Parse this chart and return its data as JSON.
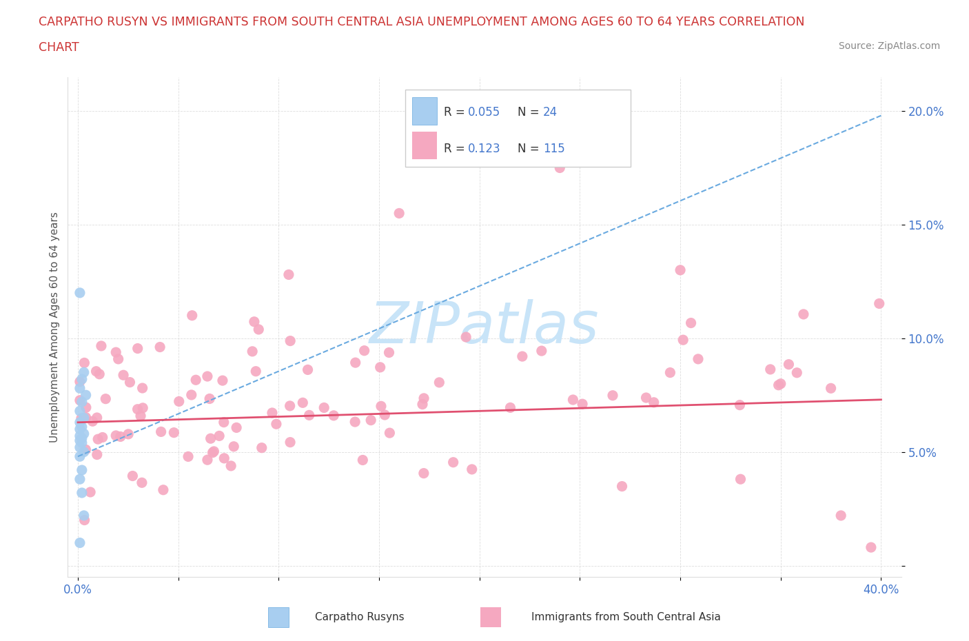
{
  "title_line1": "CARPATHO RUSYN VS IMMIGRANTS FROM SOUTH CENTRAL ASIA UNEMPLOYMENT AMONG AGES 60 TO 64 YEARS CORRELATION",
  "title_line2": "CHART",
  "source_text": "Source: ZipAtlas.com",
  "ylabel": "Unemployment Among Ages 60 to 64 years",
  "xlim": [
    -0.005,
    0.41
  ],
  "ylim": [
    -0.005,
    0.215
  ],
  "xtick_vals": [
    0.0,
    0.05,
    0.1,
    0.15,
    0.2,
    0.25,
    0.3,
    0.35,
    0.4
  ],
  "xtick_labels": [
    "0.0%",
    "",
    "",
    "",
    "",
    "",
    "",
    "",
    "40.0%"
  ],
  "ytick_vals": [
    0.0,
    0.05,
    0.1,
    0.15,
    0.2
  ],
  "ytick_labels": [
    "",
    "5.0%",
    "10.0%",
    "15.0%",
    "20.0%"
  ],
  "R_rusyn": "0.055",
  "N_rusyn": "24",
  "R_immigrant": "0.123",
  "N_immigrant": "115",
  "color_rusyn_fill": "#a8cef0",
  "color_rusyn_edge": "#6aaae0",
  "color_immigrant_fill": "#f5a8c0",
  "color_immigrant_edge": "#f57090",
  "color_rusyn_line": "#6aaae0",
  "color_immigrant_line": "#e05070",
  "legend_label_rusyn": "Carpatho Rusyns",
  "legend_label_immigrant": "Immigrants from South Central Asia",
  "watermark_text": "ZIPatlas",
  "watermark_color": "#c8e4f8",
  "background_color": "#ffffff",
  "title_color": "#cc3333",
  "axis_label_color": "#4477cc",
  "tick_color": "#4477cc",
  "grid_color": "#dddddd",
  "rusyn_trend_start_y": 0.048,
  "rusyn_trend_end_y": 0.198,
  "immigrant_trend_start_y": 0.063,
  "immigrant_trend_end_y": 0.073
}
